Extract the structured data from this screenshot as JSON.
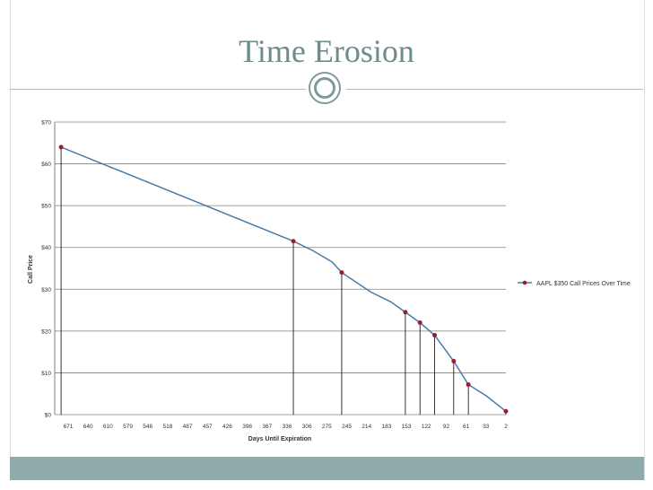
{
  "slide": {
    "title": "Time Erosion"
  },
  "colors": {
    "title": "#6f8b8b",
    "accent_band": "#8fabab",
    "series_line": "#4a7ba7",
    "series_marker": "#9b1c2e",
    "gridline": "#808080"
  },
  "chart_data": {
    "type": "line",
    "title": "",
    "xlabel": "Days Until Expiration",
    "ylabel": "Call Price",
    "x_tick_labels": [
      "671",
      "640",
      "610",
      "579",
      "548",
      "518",
      "487",
      "457",
      "426",
      "398",
      "367",
      "336",
      "306",
      "275",
      "245",
      "214",
      "183",
      "153",
      "122",
      "92",
      "61",
      "33",
      "2"
    ],
    "y_tick_labels": [
      "$0",
      "$10",
      "$20",
      "$30",
      "$40",
      "$50",
      "$60",
      "$70"
    ],
    "ylim": [
      0,
      70
    ],
    "y_step": 10,
    "grid": "horizontal",
    "legend_position": "right",
    "series": [
      {
        "name": "AAPL $350 Call Prices Over Time",
        "points": [
          {
            "x": 701,
            "y": 64.0,
            "marker": true
          },
          {
            "x": 336,
            "y": 41.5,
            "marker": true
          },
          {
            "x": 306,
            "y": 39.3,
            "marker": false
          },
          {
            "x": 275,
            "y": 36.5,
            "marker": false
          },
          {
            "x": 260,
            "y": 34.0,
            "marker": true
          },
          {
            "x": 214,
            "y": 29.3,
            "marker": false
          },
          {
            "x": 183,
            "y": 27.0,
            "marker": false
          },
          {
            "x": 160,
            "y": 24.5,
            "marker": true
          },
          {
            "x": 137,
            "y": 22.0,
            "marker": true
          },
          {
            "x": 114,
            "y": 19.0,
            "marker": true
          },
          {
            "x": 84,
            "y": 12.8,
            "marker": true
          },
          {
            "x": 61,
            "y": 7.2,
            "marker": true
          },
          {
            "x": 33,
            "y": 4.5,
            "marker": false
          },
          {
            "x": 2,
            "y": 0.8,
            "marker": true
          }
        ]
      }
    ]
  }
}
